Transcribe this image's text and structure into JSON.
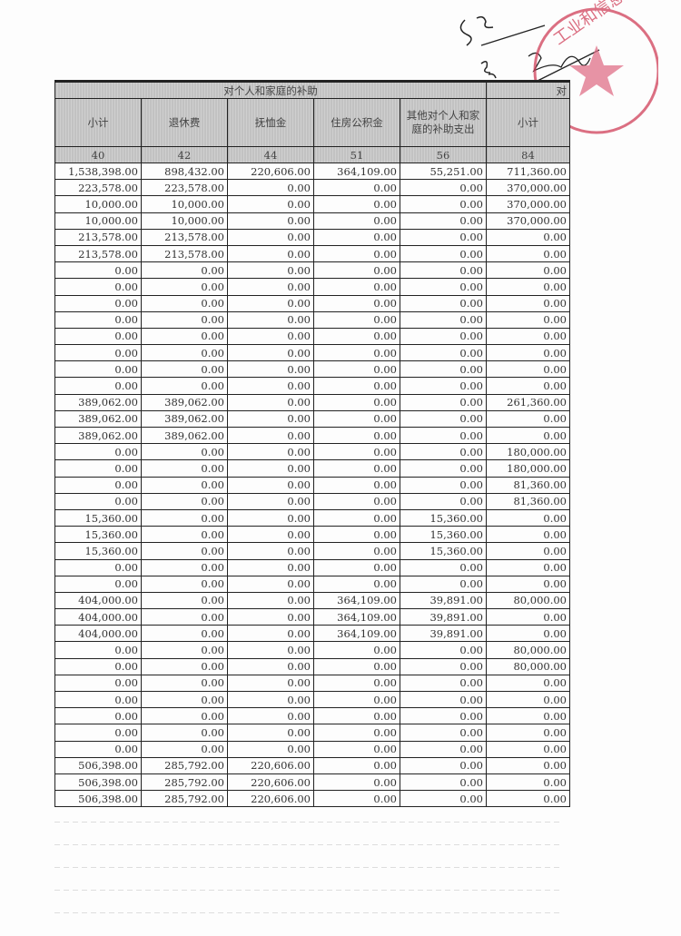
{
  "table": {
    "group_title": "对个人和家庭的补助",
    "next_group_title_partial": "对",
    "headers": [
      "小计",
      "退休费",
      "抚恤金",
      "住房公积金",
      "其他对个人和家庭的补助支出",
      "小计"
    ],
    "codes": [
      "40",
      "42",
      "44",
      "51",
      "56",
      "84"
    ],
    "rows": [
      [
        "1,538,398.00",
        "898,432.00",
        "220,606.00",
        "364,109.00",
        "55,251.00",
        "711,360.00"
      ],
      [
        "223,578.00",
        "223,578.00",
        "0.00",
        "0.00",
        "0.00",
        "370,000.00"
      ],
      [
        "10,000.00",
        "10,000.00",
        "0.00",
        "0.00",
        "0.00",
        "370,000.00"
      ],
      [
        "10,000.00",
        "10,000.00",
        "0.00",
        "0.00",
        "0.00",
        "370,000.00"
      ],
      [
        "213,578.00",
        "213,578.00",
        "0.00",
        "0.00",
        "0.00",
        "0.00"
      ],
      [
        "213,578.00",
        "213,578.00",
        "0.00",
        "0.00",
        "0.00",
        "0.00"
      ],
      [
        "0.00",
        "0.00",
        "0.00",
        "0.00",
        "0.00",
        "0.00"
      ],
      [
        "0.00",
        "0.00",
        "0.00",
        "0.00",
        "0.00",
        "0.00"
      ],
      [
        "0.00",
        "0.00",
        "0.00",
        "0.00",
        "0.00",
        "0.00"
      ],
      [
        "0.00",
        "0.00",
        "0.00",
        "0.00",
        "0.00",
        "0.00"
      ],
      [
        "0.00",
        "0.00",
        "0.00",
        "0.00",
        "0.00",
        "0.00"
      ],
      [
        "0.00",
        "0.00",
        "0.00",
        "0.00",
        "0.00",
        "0.00"
      ],
      [
        "0.00",
        "0.00",
        "0.00",
        "0.00",
        "0.00",
        "0.00"
      ],
      [
        "0.00",
        "0.00",
        "0.00",
        "0.00",
        "0.00",
        "0.00"
      ],
      [
        "389,062.00",
        "389,062.00",
        "0.00",
        "0.00",
        "0.00",
        "261,360.00"
      ],
      [
        "389,062.00",
        "389,062.00",
        "0.00",
        "0.00",
        "0.00",
        "0.00"
      ],
      [
        "389,062.00",
        "389,062.00",
        "0.00",
        "0.00",
        "0.00",
        "0.00"
      ],
      [
        "0.00",
        "0.00",
        "0.00",
        "0.00",
        "0.00",
        "180,000.00"
      ],
      [
        "0.00",
        "0.00",
        "0.00",
        "0.00",
        "0.00",
        "180,000.00"
      ],
      [
        "0.00",
        "0.00",
        "0.00",
        "0.00",
        "0.00",
        "81,360.00"
      ],
      [
        "0.00",
        "0.00",
        "0.00",
        "0.00",
        "0.00",
        "81,360.00"
      ],
      [
        "15,360.00",
        "0.00",
        "0.00",
        "0.00",
        "15,360.00",
        "0.00"
      ],
      [
        "15,360.00",
        "0.00",
        "0.00",
        "0.00",
        "15,360.00",
        "0.00"
      ],
      [
        "15,360.00",
        "0.00",
        "0.00",
        "0.00",
        "15,360.00",
        "0.00"
      ],
      [
        "0.00",
        "0.00",
        "0.00",
        "0.00",
        "0.00",
        "0.00"
      ],
      [
        "0.00",
        "0.00",
        "0.00",
        "0.00",
        "0.00",
        "0.00"
      ],
      [
        "404,000.00",
        "0.00",
        "0.00",
        "364,109.00",
        "39,891.00",
        "80,000.00"
      ],
      [
        "404,000.00",
        "0.00",
        "0.00",
        "364,109.00",
        "39,891.00",
        "0.00"
      ],
      [
        "404,000.00",
        "0.00",
        "0.00",
        "364,109.00",
        "39,891.00",
        "0.00"
      ],
      [
        "0.00",
        "0.00",
        "0.00",
        "0.00",
        "0.00",
        "80,000.00"
      ],
      [
        "0.00",
        "0.00",
        "0.00",
        "0.00",
        "0.00",
        "80,000.00"
      ],
      [
        "0.00",
        "0.00",
        "0.00",
        "0.00",
        "0.00",
        "0.00"
      ],
      [
        "0.00",
        "0.00",
        "0.00",
        "0.00",
        "0.00",
        "0.00"
      ],
      [
        "0.00",
        "0.00",
        "0.00",
        "0.00",
        "0.00",
        "0.00"
      ],
      [
        "0.00",
        "0.00",
        "0.00",
        "0.00",
        "0.00",
        "0.00"
      ],
      [
        "0.00",
        "0.00",
        "0.00",
        "0.00",
        "0.00",
        "0.00"
      ],
      [
        "506,398.00",
        "285,792.00",
        "220,606.00",
        "0.00",
        "0.00",
        "0.00"
      ],
      [
        "506,398.00",
        "285,792.00",
        "220,606.00",
        "0.00",
        "0.00",
        "0.00"
      ],
      [
        "506,398.00",
        "285,792.00",
        "220,606.00",
        "0.00",
        "0.00",
        "0.00"
      ]
    ]
  },
  "stamp": {
    "text": "工业和信息化局",
    "color": "#d0405a"
  },
  "signature": {
    "color": "#222222"
  }
}
